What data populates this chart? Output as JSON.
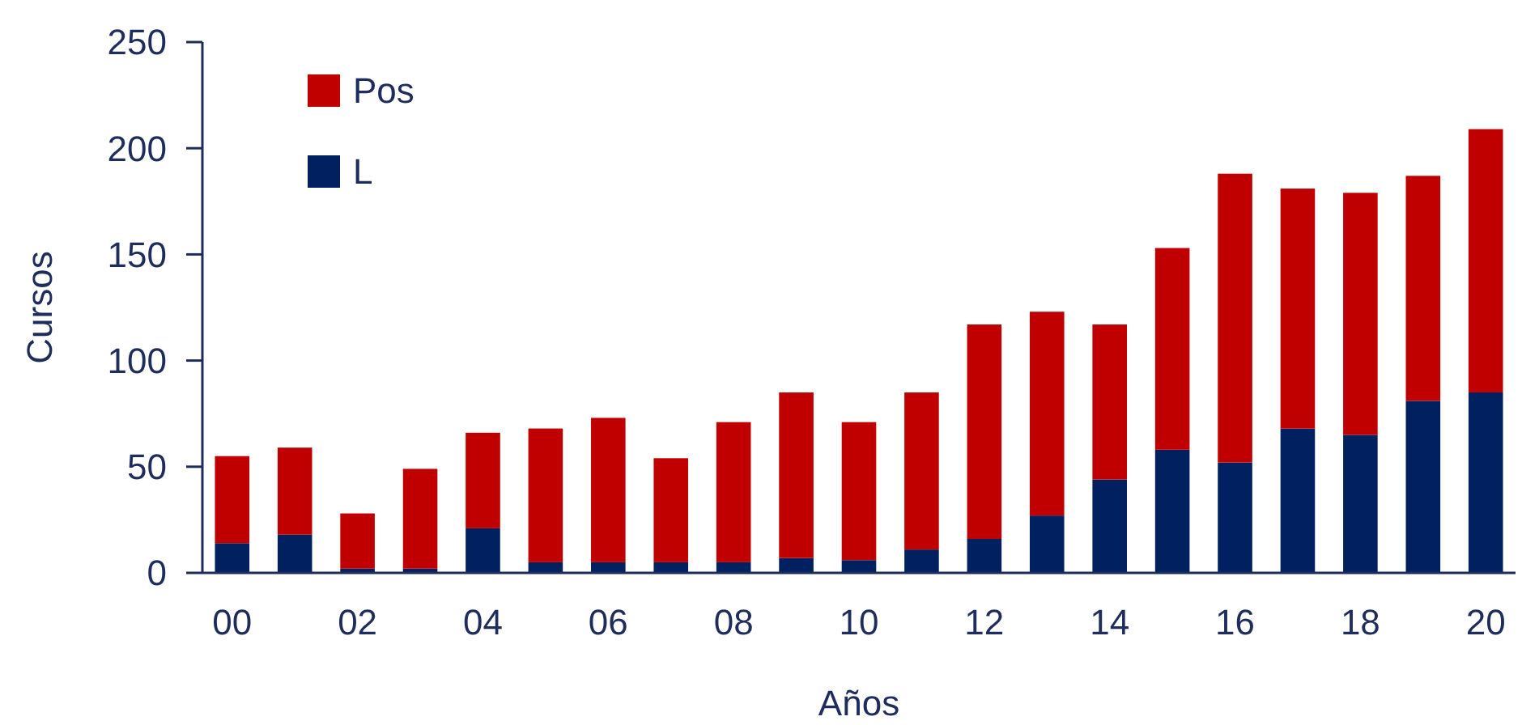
{
  "chart_data": {
    "type": "bar",
    "stacked": true,
    "xlabel": "Años",
    "ylabel": "Cursos",
    "categories": [
      "00",
      null,
      "02",
      null,
      "04",
      null,
      "06",
      null,
      "08",
      null,
      "10",
      null,
      "12",
      null,
      "14",
      null,
      "16",
      null,
      "18",
      null,
      "20"
    ],
    "series": [
      {
        "name": "L",
        "color": "#002060",
        "values": [
          14,
          18,
          2,
          2,
          21,
          5,
          5,
          5,
          5,
          7,
          6,
          11,
          16,
          27,
          44,
          58,
          52,
          68,
          65,
          81,
          85
        ]
      },
      {
        "name": "Pos",
        "color": "#c00000",
        "values": [
          41,
          41,
          26,
          47,
          45,
          63,
          68,
          49,
          66,
          78,
          65,
          74,
          101,
          96,
          73,
          95,
          136,
          113,
          114,
          106,
          124
        ]
      }
    ],
    "ylim": [
      0,
      250
    ],
    "yticks": [
      0,
      50,
      100,
      150,
      200,
      250
    ],
    "grid": false,
    "legend": "top left"
  }
}
